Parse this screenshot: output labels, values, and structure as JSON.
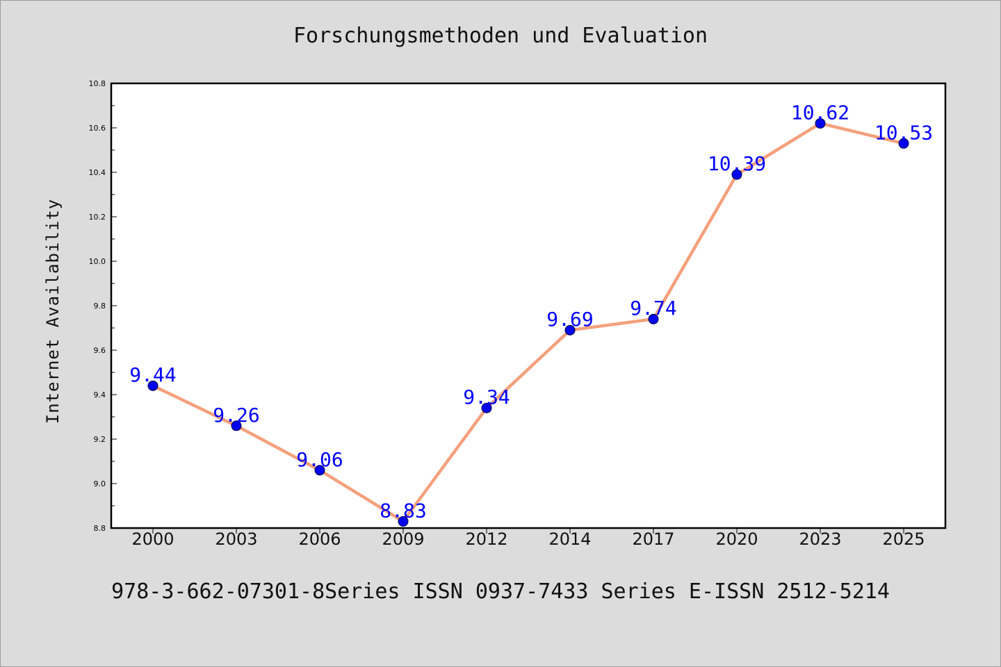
{
  "chart_data": {
    "type": "line",
    "title": "Forschungsmethoden und Evaluation",
    "xlabel": "",
    "ylabel": "Internet Availability",
    "categories": [
      "2000",
      "2003",
      "2006",
      "2009",
      "2012",
      "2014",
      "2017",
      "2020",
      "2023",
      "2025"
    ],
    "series": [
      {
        "values": [
          9.44,
          9.26,
          9.06,
          8.83,
          9.34,
          9.69,
          9.74,
          10.39,
          10.62,
          10.53
        ],
        "value_labels": [
          "9.44",
          "9.26",
          "9.06",
          "8.83",
          "9.34",
          "9.69",
          "9.74",
          "10.39",
          "10.62",
          "10.53"
        ],
        "line_color": "#f4a07c",
        "marker_color": "#0000ee",
        "label_color": "#0000ff"
      }
    ],
    "ylim": [
      8.8,
      10.8
    ],
    "yticks": [
      "8.8",
      "9.0",
      "9.2",
      "9.4",
      "9.6",
      "9.8",
      "10.0",
      "10.2",
      "10.4",
      "10.6",
      "10.8"
    ],
    "grid": false
  },
  "footer": {
    "text": "978-3-662-07301-8Series ISSN 0937-7433 Series E-ISSN 2512-5214"
  }
}
